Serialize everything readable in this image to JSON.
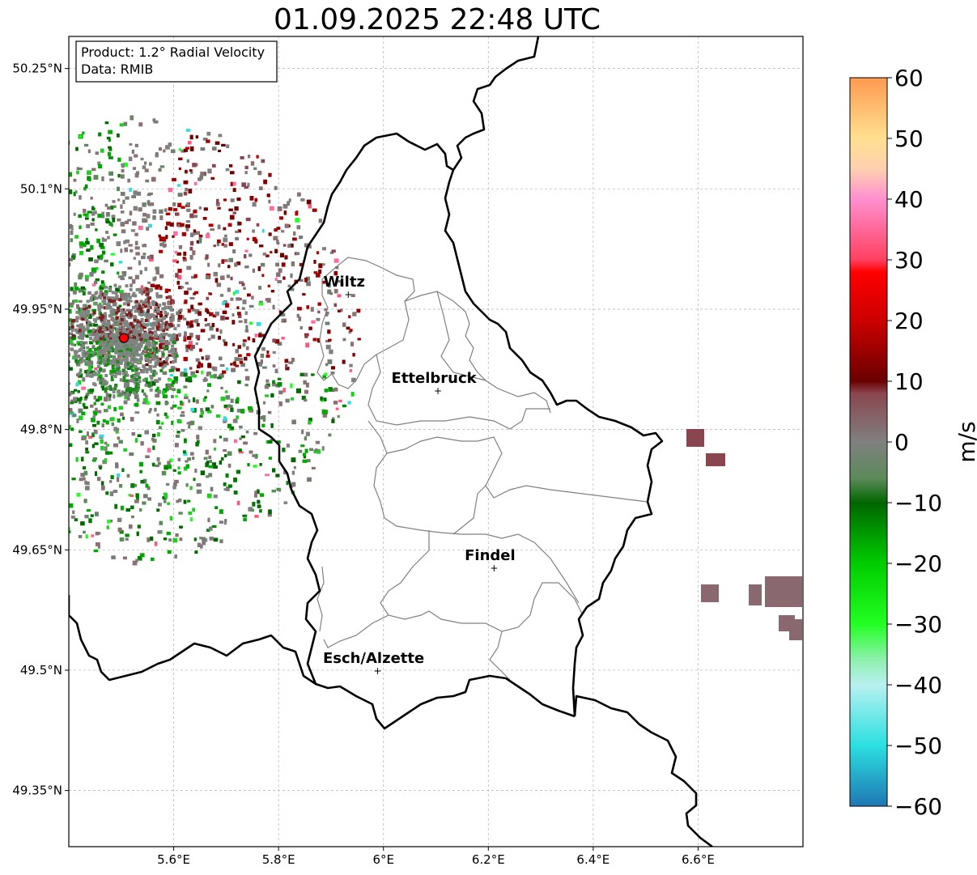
{
  "title": "01.09.2025 22:48 UTC",
  "info_box": {
    "product": "Product: 1.2° Radial Velocity",
    "data": "Data: RMIB"
  },
  "map": {
    "lon_range": [
      5.4,
      6.8
    ],
    "lat_range": [
      49.28,
      50.29
    ],
    "x_ticks": [
      {
        "value": 5.6,
        "label": "5.6°E"
      },
      {
        "value": 5.8,
        "label": "5.8°E"
      },
      {
        "value": 6.0,
        "label": "6°E"
      },
      {
        "value": 6.2,
        "label": "6.2°E"
      },
      {
        "value": 6.4,
        "label": "6.4°E"
      },
      {
        "value": 6.6,
        "label": "6.6°E"
      }
    ],
    "y_ticks": [
      {
        "value": 50.25,
        "label": "50.25°N"
      },
      {
        "value": 50.1,
        "label": "50.1°N"
      },
      {
        "value": 49.95,
        "label": "49.95°N"
      },
      {
        "value": 49.8,
        "label": "49.8°N"
      },
      {
        "value": 49.65,
        "label": "49.65°N"
      },
      {
        "value": 49.5,
        "label": "49.5°N"
      },
      {
        "value": 49.35,
        "label": "49.35°N"
      }
    ],
    "radar_site": {
      "lon": 5.505,
      "lat": 49.914
    },
    "cities": [
      {
        "name": "Wiltz",
        "lon": 5.933,
        "lat": 49.968
      },
      {
        "name": "Ettelbruck",
        "lon": 6.104,
        "lat": 49.848
      },
      {
        "name": "Findel",
        "lon": 6.211,
        "lat": 49.627
      },
      {
        "name": "Esch/Alzette",
        "lon": 5.989,
        "lat": 49.499
      }
    ]
  },
  "colorbar": {
    "label": "m/s",
    "min": -60,
    "max": 60,
    "ticks": [
      {
        "value": 60,
        "label": "60"
      },
      {
        "value": 50,
        "label": "50"
      },
      {
        "value": 40,
        "label": "40"
      },
      {
        "value": 30,
        "label": "30"
      },
      {
        "value": 20,
        "label": "20"
      },
      {
        "value": 10,
        "label": "10"
      },
      {
        "value": 0,
        "label": "0"
      },
      {
        "value": -10,
        "label": "−10"
      },
      {
        "value": -20,
        "label": "−20"
      },
      {
        "value": -30,
        "label": "−30"
      },
      {
        "value": -40,
        "label": "−40"
      },
      {
        "value": -50,
        "label": "−50"
      },
      {
        "value": -60,
        "label": "−60"
      }
    ],
    "stops": [
      {
        "value": -60,
        "color": "#1f77b4"
      },
      {
        "value": -50,
        "color": "#2bdfe0"
      },
      {
        "value": -40,
        "color": "#b8f0f0"
      },
      {
        "value": -36,
        "color": "#90f0b0"
      },
      {
        "value": -30,
        "color": "#22ff22"
      },
      {
        "value": -20,
        "color": "#00cc00"
      },
      {
        "value": -10,
        "color": "#006600"
      },
      {
        "value": -6,
        "color": "#5d8a5a"
      },
      {
        "value": 0,
        "color": "#808080"
      },
      {
        "value": 8,
        "color": "#8a4650"
      },
      {
        "value": 10,
        "color": "#6a0000"
      },
      {
        "value": 20,
        "color": "#cc0000"
      },
      {
        "value": 28,
        "color": "#ff0000"
      },
      {
        "value": 30,
        "color": "#ff4060"
      },
      {
        "value": 40,
        "color": "#ff90d0"
      },
      {
        "value": 45,
        "color": "#ffd0b0"
      },
      {
        "value": 50,
        "color": "#ffe090"
      },
      {
        "value": 60,
        "color": "#ff9a50"
      }
    ]
  },
  "legend_colors": {
    "axes": "#000000",
    "grid": "#b0b0b0",
    "border_national": "#000000",
    "border_cantons": "#808080",
    "radar_marker": "#ff0000"
  }
}
